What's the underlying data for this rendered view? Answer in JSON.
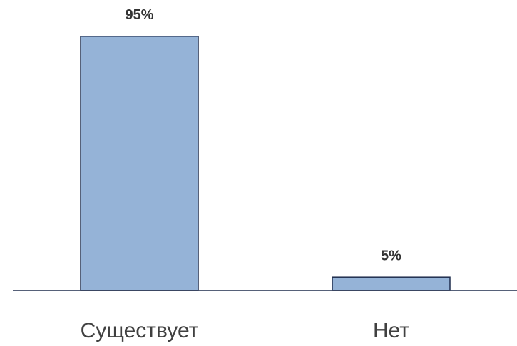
{
  "chart_data": {
    "type": "bar",
    "categories": [
      "Существует",
      "Нет"
    ],
    "values": [
      95,
      5
    ],
    "value_labels": [
      "95%",
      "5%"
    ],
    "color": "#95b3d7"
  }
}
